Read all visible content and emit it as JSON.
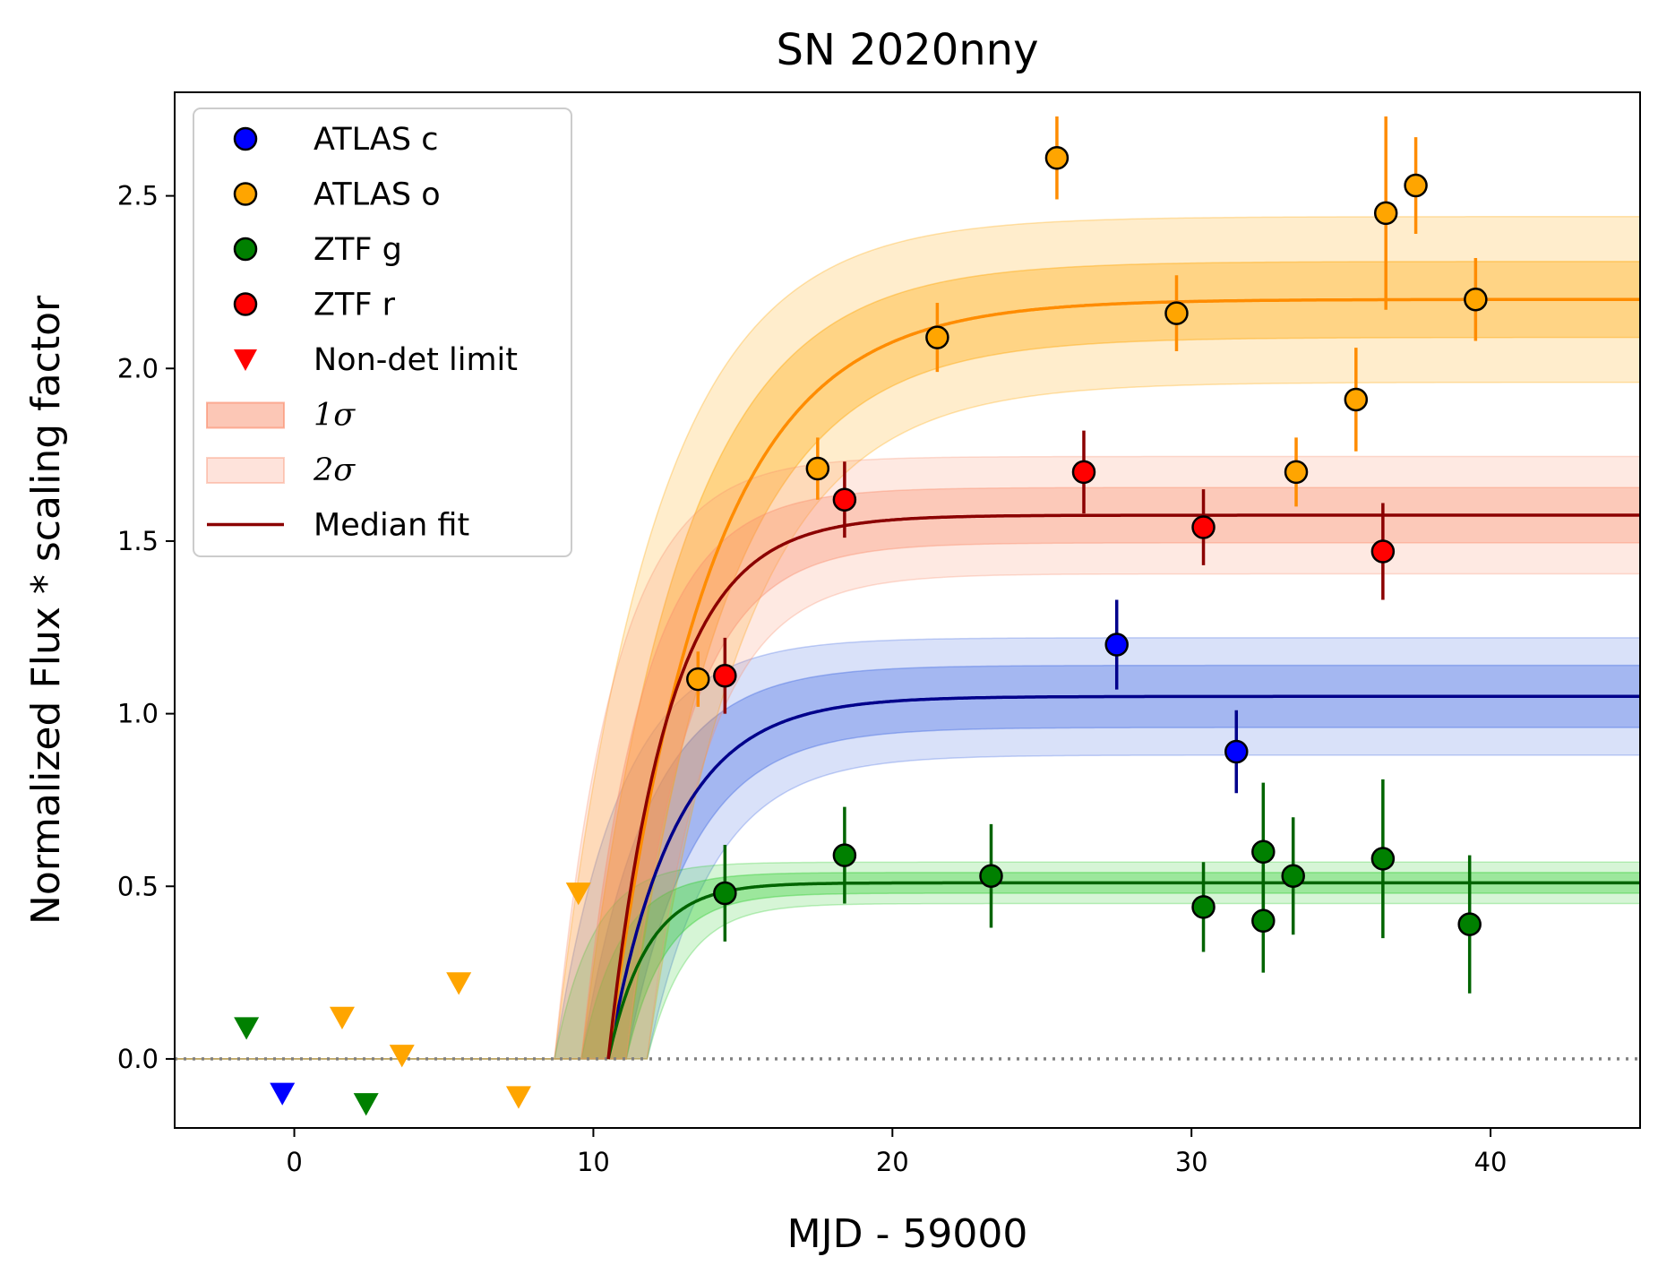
{
  "chart_data": {
    "type": "scatter",
    "title": "SN 2020nny",
    "xlabel": "MJD - 59000",
    "ylabel": "Normalized Flux * scaling factor",
    "xlim": [
      -4,
      45
    ],
    "ylim": [
      -0.2,
      2.8
    ],
    "xticks": [
      0,
      10,
      20,
      30,
      40
    ],
    "yticks": [
      0.0,
      0.5,
      1.0,
      1.5,
      2.0,
      2.5
    ],
    "xtick_labels": [
      "0",
      "10",
      "20",
      "30",
      "40"
    ],
    "ytick_labels": [
      "0.0",
      "0.5",
      "1.0",
      "1.5",
      "2.0",
      "2.5"
    ],
    "zero_line": {
      "y": 0,
      "style": "dotted",
      "color": "#808080"
    },
    "legend_position": "upper-left",
    "legend": [
      {
        "label": "ATLAS c",
        "marker": "circle",
        "color": "#0000ff"
      },
      {
        "label": "ATLAS o",
        "marker": "circle",
        "color": "#ffa500"
      },
      {
        "label": "ZTF g",
        "marker": "circle",
        "color": "#008000"
      },
      {
        "label": "ZTF r",
        "marker": "circle",
        "color": "#ff0000"
      },
      {
        "label": "Non-det limit",
        "marker": "triangle-down",
        "color": "#ff0000"
      },
      {
        "label": "1σ",
        "marker": "band",
        "color": "#fa8f6e",
        "opacity": 0.5
      },
      {
        "label": "2σ",
        "marker": "band",
        "color": "#fa8f6e",
        "opacity": 0.25
      },
      {
        "label": "Median fit",
        "marker": "line",
        "color": "#8b0000"
      }
    ],
    "series": [
      {
        "name": "ATLAS c",
        "color": "#0000ff",
        "errcolor": "#00008b",
        "points": [
          {
            "x": 27.5,
            "y": 1.2,
            "err": 0.13
          },
          {
            "x": 31.5,
            "y": 0.89,
            "err": 0.12
          }
        ],
        "limits": [
          {
            "x": -0.4,
            "y": -0.1
          }
        ],
        "fit": {
          "t0": 10.5,
          "amplitude": 1.05,
          "tau": 2.2,
          "band1": 0.09,
          "band2": 0.17,
          "color": "#00008b",
          "fill": "#4169e1"
        }
      },
      {
        "name": "ATLAS o",
        "color": "#ffa500",
        "errcolor": "#ff8c00",
        "points": [
          {
            "x": 13.5,
            "y": 1.1,
            "err": 0.08
          },
          {
            "x": 17.5,
            "y": 1.71,
            "err": 0.09
          },
          {
            "x": 21.5,
            "y": 2.09,
            "err": 0.1
          },
          {
            "x": 25.5,
            "y": 2.61,
            "err": 0.12
          },
          {
            "x": 29.5,
            "y": 2.16,
            "err": 0.11
          },
          {
            "x": 33.5,
            "y": 1.7,
            "err": 0.1
          },
          {
            "x": 35.5,
            "y": 1.91,
            "err": 0.15
          },
          {
            "x": 36.5,
            "y": 2.45,
            "err": 0.28
          },
          {
            "x": 37.5,
            "y": 2.53,
            "err": 0.14
          },
          {
            "x": 39.5,
            "y": 2.2,
            "err": 0.12
          }
        ],
        "limits": [
          {
            "x": 1.6,
            "y": 0.12
          },
          {
            "x": 3.6,
            "y": 0.01
          },
          {
            "x": 5.5,
            "y": 0.22
          },
          {
            "x": 7.5,
            "y": -0.11
          },
          {
            "x": 9.5,
            "y": 0.48
          }
        ],
        "fit": {
          "t0": 10.5,
          "amplitude": 2.2,
          "tau": 3.3,
          "band1": 0.11,
          "band2": 0.24,
          "color": "#ff8c00",
          "fill": "#ffa500"
        }
      },
      {
        "name": "ZTF g",
        "color": "#008000",
        "errcolor": "#006400",
        "points": [
          {
            "x": 14.4,
            "y": 0.48,
            "err": 0.14
          },
          {
            "x": 18.4,
            "y": 0.59,
            "err": 0.14
          },
          {
            "x": 23.3,
            "y": 0.53,
            "err": 0.15
          },
          {
            "x": 30.4,
            "y": 0.44,
            "err": 0.13
          },
          {
            "x": 32.4,
            "y": 0.6,
            "err": 0.2
          },
          {
            "x": 32.4,
            "y": 0.4,
            "err": 0.15
          },
          {
            "x": 33.4,
            "y": 0.53,
            "err": 0.17
          },
          {
            "x": 36.4,
            "y": 0.58,
            "err": 0.23
          },
          {
            "x": 39.3,
            "y": 0.39,
            "err": 0.2
          }
        ],
        "limits": [
          {
            "x": -1.6,
            "y": 0.09
          },
          {
            "x": 2.4,
            "y": -0.13
          }
        ],
        "fit": {
          "t0": 10.5,
          "amplitude": 0.51,
          "tau": 1.3,
          "band1": 0.03,
          "band2": 0.06,
          "color": "#006400",
          "fill": "#32cd32"
        }
      },
      {
        "name": "ZTF r",
        "color": "#ff0000",
        "errcolor": "#8b0000",
        "points": [
          {
            "x": 14.4,
            "y": 1.11,
            "err": 0.11
          },
          {
            "x": 18.4,
            "y": 1.62,
            "err": 0.11
          },
          {
            "x": 26.4,
            "y": 1.7,
            "err": 0.12
          },
          {
            "x": 30.4,
            "y": 1.54,
            "err": 0.11
          },
          {
            "x": 36.4,
            "y": 1.47,
            "err": 0.14
          }
        ],
        "limits": [],
        "fit": {
          "t0": 10.5,
          "amplitude": 1.575,
          "tau": 2.0,
          "band1": 0.08,
          "band2": 0.17,
          "color": "#8b0000",
          "fill": "#fa8f6e"
        }
      }
    ]
  }
}
